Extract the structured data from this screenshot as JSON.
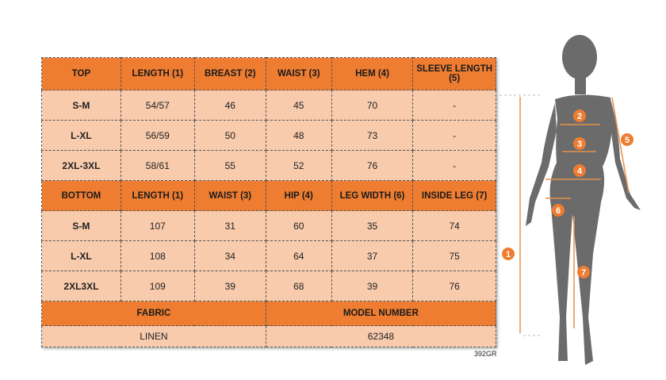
{
  "top": {
    "headers": [
      "TOP",
      "LENGTH (1)",
      "BREAST (2)",
      "WAIST (3)",
      "HEM (4)",
      "SLEEVE LENGTH (5)"
    ],
    "rows": [
      [
        "S-M",
        "54/57",
        "46",
        "45",
        "70",
        "-"
      ],
      [
        "L-XL",
        "56/59",
        "50",
        "48",
        "73",
        "-"
      ],
      [
        "2XL-3XL",
        "58/61",
        "55",
        "52",
        "76",
        "-"
      ]
    ]
  },
  "bottom": {
    "headers": [
      "BOTTOM",
      "LENGTH (1)",
      "WAIST (3)",
      "HIP (4)",
      "LEG WIDTH (6)",
      "INSIDE LEG (7)"
    ],
    "rows": [
      [
        "S-M",
        "107",
        "31",
        "60",
        "35",
        "74"
      ],
      [
        "L-XL",
        "108",
        "34",
        "64",
        "37",
        "75"
      ],
      [
        "2XL3XL",
        "109",
        "39",
        "68",
        "39",
        "76"
      ]
    ]
  },
  "info": {
    "fabric_label": "FABRIC",
    "model_label": "MODEL NUMBER",
    "fabric": "LINEN",
    "model": "62348"
  },
  "code": "392GR",
  "markers": [
    "1",
    "2",
    "3",
    "4",
    "5",
    "6",
    "7"
  ],
  "colors": {
    "header": "#ee7d31",
    "cell": "#f8cbad",
    "silhouette": "#6b6b6b"
  }
}
